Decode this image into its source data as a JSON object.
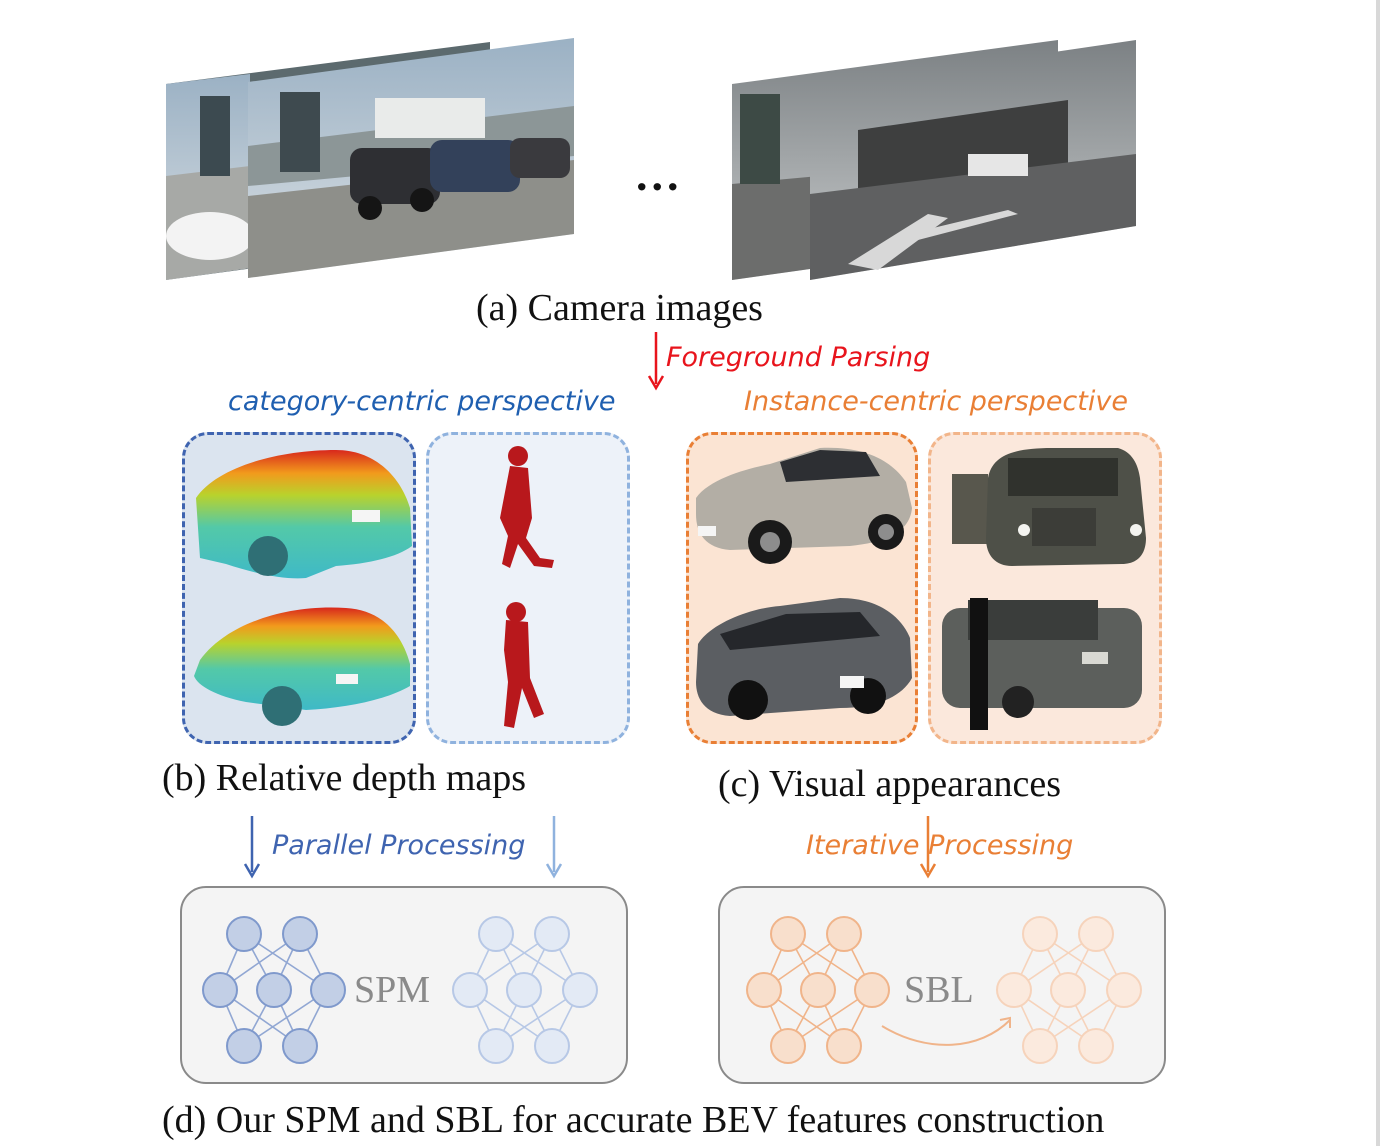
{
  "figure": {
    "caption_a": "(a) Camera images",
    "ellipsis": "...",
    "arrow_label_foreground": "Foreground Parsing",
    "label_category_centric": "category-centric perspective",
    "label_instance_centric": "Instance-centric perspective",
    "caption_b": "(b) Relative depth maps",
    "caption_c": "(c) Visual appearances",
    "arrow_label_parallel": "Parallel Processing",
    "arrow_label_iterative": "Iterative Processing",
    "module_spm": "SPM",
    "module_sbl": "SBL",
    "caption_d": "(d) Our SPM and SBL for accurate BEV features construction"
  },
  "colors": {
    "red_label": "#e8141c",
    "blue_label": "#1f5fb0",
    "orange_label": "#e97f35",
    "blue_node": "#7f99cc",
    "orange_node": "#f0b48a"
  }
}
